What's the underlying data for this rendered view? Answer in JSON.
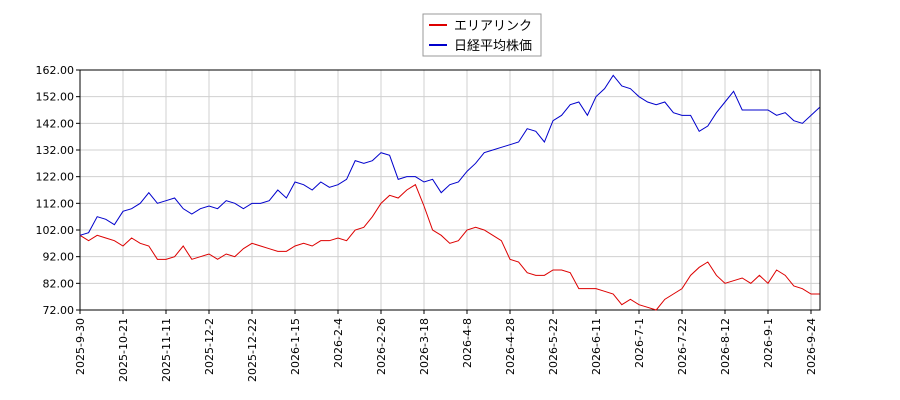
{
  "chart_data": {
    "type": "line",
    "categories": [
      "2025-9-30",
      "2025-10-3",
      "2025-10-8",
      "2025-10-14",
      "2025-10-16",
      "2025-10-21",
      "2025-10-24",
      "2025-10-29",
      "2025-11-4",
      "2025-11-6",
      "2025-11-11",
      "2025-11-14",
      "2025-11-19",
      "2025-11-25",
      "2025-11-27",
      "2025-12-2",
      "2025-12-5",
      "2025-12-10",
      "2025-12-15",
      "2025-12-18",
      "2025-12-22",
      "2025-12-25",
      "2025-12-30",
      "2026-1-7",
      "2026-1-12",
      "2026-1-15",
      "2026-1-20",
      "2026-1-23",
      "2026-1-28",
      "2026-1-30",
      "2026-2-4",
      "2026-2-9",
      "2026-2-13",
      "2026-2-18",
      "2026-2-23",
      "2026-2-26",
      "2026-3-3",
      "2026-3-6",
      "2026-3-11",
      "2026-3-13",
      "2026-3-18",
      "2026-3-24",
      "2026-3-27",
      "2026-4-1",
      "2026-4-3",
      "2026-4-8",
      "2026-4-13",
      "2026-4-16",
      "2026-4-21",
      "2026-4-23",
      "2026-4-28",
      "2026-5-1",
      "2026-5-11",
      "2026-5-14",
      "2026-5-19",
      "2026-5-22",
      "2026-5-27",
      "2026-5-29",
      "2026-6-3",
      "2026-6-8",
      "2026-6-11",
      "2026-6-16",
      "2026-6-19",
      "2026-6-24",
      "2026-6-26",
      "2026-7-1",
      "2026-7-6",
      "2026-7-9",
      "2026-7-14",
      "2026-7-17",
      "2026-7-22",
      "2026-7-27",
      "2026-7-30",
      "2026-8-4",
      "2026-8-7",
      "2026-8-12",
      "2026-8-17",
      "2026-8-20",
      "2026-8-25",
      "2026-8-27",
      "2026-9-1",
      "2026-9-4",
      "2026-9-9",
      "2026-9-14",
      "2026-9-17",
      "2026-9-24",
      "2026-9-29"
    ],
    "xticks": [
      "2025-9-30",
      "2025-10-21",
      "2025-11-11",
      "2025-12-2",
      "2025-12-22",
      "2026-1-15",
      "2026-2-4",
      "2026-2-26",
      "2026-3-18",
      "2026-4-8",
      "2026-4-28",
      "2026-5-22",
      "2026-6-11",
      "2026-7-1",
      "2026-7-22",
      "2026-8-12",
      "2026-9-1",
      "2026-9-24"
    ],
    "series": [
      {
        "name": "エリアリンク",
        "color": "#dd0000",
        "values": [
          100,
          98,
          100,
          99,
          98,
          96,
          99,
          97,
          96,
          91,
          91,
          92,
          96,
          91,
          92,
          93,
          91,
          93,
          92,
          95,
          97,
          96,
          95,
          94,
          94,
          96,
          97,
          96,
          98,
          98,
          99,
          98,
          102,
          103,
          107,
          112,
          115,
          114,
          117,
          119,
          111,
          102,
          100,
          97,
          98,
          102,
          103,
          102,
          100,
          98,
          91,
          90,
          86,
          85,
          85,
          87,
          87,
          86,
          80,
          80,
          80,
          79,
          78,
          74,
          76,
          74,
          73,
          72,
          76,
          78,
          80,
          85,
          88,
          90,
          85,
          82,
          83,
          84,
          82,
          85,
          82,
          87,
          85,
          81,
          80,
          78,
          78
        ]
      },
      {
        "name": "日経平均株価",
        "color": "#0000cc",
        "values": [
          100,
          101,
          107,
          106,
          104,
          109,
          110,
          112,
          116,
          112,
          113,
          114,
          110,
          108,
          110,
          111,
          110,
          113,
          112,
          110,
          112,
          112,
          113,
          117,
          114,
          120,
          119,
          117,
          120,
          118,
          119,
          121,
          128,
          127,
          128,
          131,
          130,
          121,
          122,
          122,
          120,
          121,
          116,
          119,
          120,
          124,
          127,
          131,
          132,
          133,
          134,
          135,
          140,
          139,
          135,
          143,
          145,
          149,
          150,
          145,
          152,
          155,
          160,
          156,
          155,
          152,
          150,
          149,
          150,
          146,
          145,
          145,
          139,
          141,
          146,
          150,
          154,
          147,
          147,
          147,
          147,
          145,
          146,
          143,
          142,
          145,
          148
        ]
      }
    ],
    "ylim": [
      72,
      162
    ],
    "yticks": [
      {
        "value": 72,
        "label": "72.00"
      },
      {
        "value": 82,
        "label": "82.00"
      },
      {
        "value": 92,
        "label": "92.00"
      },
      {
        "value": 102,
        "label": "102.00"
      },
      {
        "value": 112,
        "label": "112.00"
      },
      {
        "value": 122,
        "label": "122.00"
      },
      {
        "value": 132,
        "label": "132.00"
      },
      {
        "value": 142,
        "label": "142.00"
      },
      {
        "value": 152,
        "label": "152.00"
      },
      {
        "value": 162,
        "label": "162.00"
      }
    ],
    "grid": true
  }
}
